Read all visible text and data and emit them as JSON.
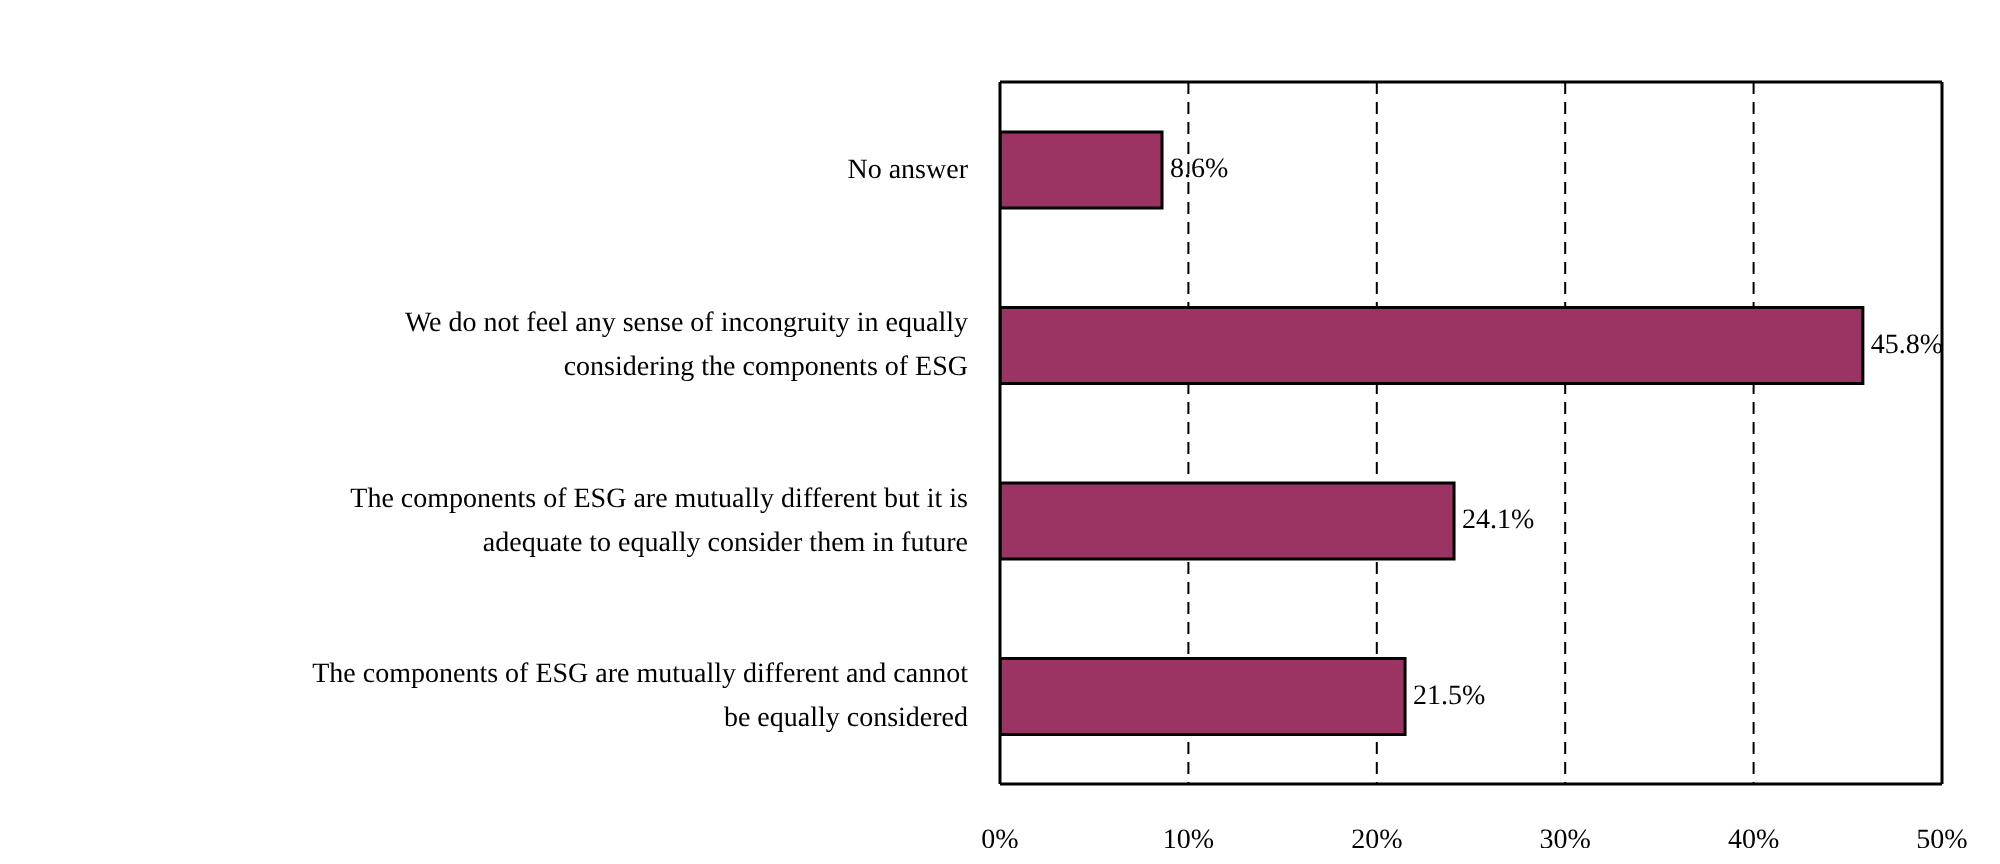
{
  "chart_data": {
    "type": "bar",
    "orientation": "horizontal",
    "categories": [
      "No answer",
      "We do not feel any sense of incongruity in equally considering the components of ESG",
      "The components of ESG are mutually different but it is adequate to equally consider them in future",
      "The components of ESG are mutually different and cannot be equally considered"
    ],
    "values": [
      8.6,
      45.8,
      24.1,
      21.5
    ],
    "value_labels": [
      "8.6%",
      "45.8%",
      "24.1%",
      "21.5%"
    ],
    "color": "#9b3462",
    "xlim": [
      0,
      50
    ],
    "xticks": [
      {
        "value": 0,
        "label": "0%"
      },
      {
        "value": 10,
        "label": "10%"
      },
      {
        "value": 20,
        "label": "20%"
      },
      {
        "value": 30,
        "label": "30%"
      },
      {
        "value": 40,
        "label": "40%"
      },
      {
        "value": 50,
        "label": "50%"
      }
    ],
    "grid": "x"
  }
}
